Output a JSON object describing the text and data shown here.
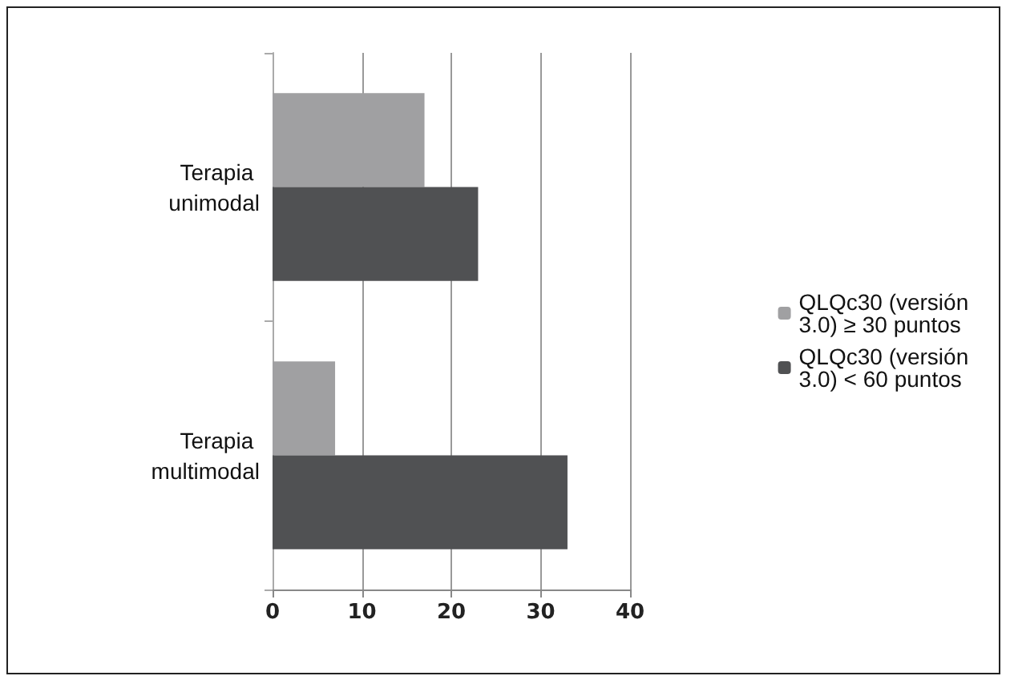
{
  "chart_data": {
    "type": "bar",
    "orientation": "horizontal",
    "categories": [
      "Terapia unimodal",
      "Terapia multimodal"
    ],
    "series": [
      {
        "name": "QLQc30 (versión 3.0) ≥ 30 puntos",
        "color": "#a0a0a2",
        "values": [
          17,
          7
        ]
      },
      {
        "name": "QLQc30 (versión 3.0) < 60 puntos",
        "color": "#505153",
        "values": [
          23,
          33
        ]
      }
    ],
    "xlim": [
      0,
      40
    ],
    "xticks": [
      0,
      10,
      20,
      30,
      40
    ],
    "grid": "x",
    "legend": "right"
  }
}
